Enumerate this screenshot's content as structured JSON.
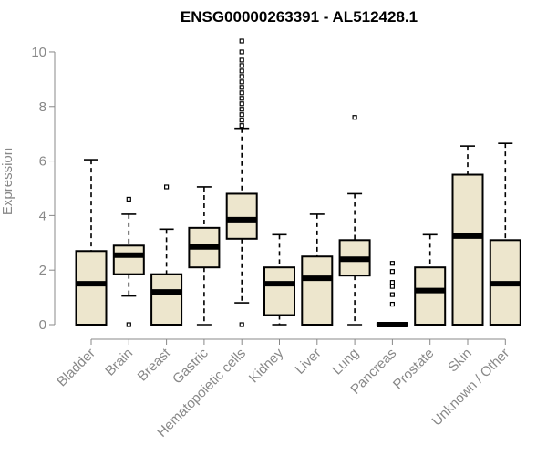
{
  "chart_data": {
    "type": "boxplot",
    "title": "ENSG00000263391 - AL512428.1",
    "xlabel": "",
    "ylabel": "Expression",
    "ylim": [
      0,
      10.4
    ],
    "yticks": [
      0,
      2,
      4,
      6,
      8,
      10
    ],
    "colors": {
      "box_fill": "#ede6cd",
      "box_stroke": "#000000",
      "axis": "#888888"
    },
    "categories": [
      "Bladder",
      "Brain",
      "Breast",
      "Gastric",
      "Hematopoietic cells",
      "Kidney",
      "Liver",
      "Lung",
      "Pancreas",
      "Prostate",
      "Skin",
      "Unknown / Other"
    ],
    "boxes": [
      {
        "min": 0,
        "q1": 0,
        "median": 1.5,
        "q3": 2.7,
        "max": 6.05,
        "outliers": []
      },
      {
        "min": 1.05,
        "q1": 1.85,
        "median": 2.55,
        "q3": 2.9,
        "max": 4.05,
        "outliers": [
          0,
          4.6
        ]
      },
      {
        "min": 0,
        "q1": 0,
        "median": 1.2,
        "q3": 1.85,
        "max": 3.5,
        "outliers": [
          5.05
        ]
      },
      {
        "min": 0,
        "q1": 2.1,
        "median": 2.85,
        "q3": 3.55,
        "max": 5.05,
        "outliers": []
      },
      {
        "min": 0.8,
        "q1": 3.15,
        "median": 3.85,
        "q3": 4.8,
        "max": 7.2,
        "outliers": [
          0,
          7.3,
          7.5,
          7.7,
          7.9,
          8.1,
          8.3,
          8.5,
          8.7,
          8.9,
          9.1,
          9.3,
          9.5,
          9.7,
          10.0,
          10.4
        ]
      },
      {
        "min": 0,
        "q1": 0.35,
        "median": 1.5,
        "q3": 2.1,
        "max": 3.3,
        "outliers": []
      },
      {
        "min": 0,
        "q1": 0,
        "median": 1.7,
        "q3": 2.5,
        "max": 4.05,
        "outliers": []
      },
      {
        "min": 0,
        "q1": 1.8,
        "median": 2.4,
        "q3": 3.1,
        "max": 4.8,
        "outliers": [
          7.6
        ]
      },
      {
        "min": 0,
        "q1": 0,
        "median": 0,
        "q3": 0.05,
        "max": 0.05,
        "outliers": [
          0.75,
          1.1,
          1.4,
          1.55,
          1.95,
          2.25
        ]
      },
      {
        "min": 0,
        "q1": 0,
        "median": 1.25,
        "q3": 2.1,
        "max": 3.3,
        "outliers": []
      },
      {
        "min": 0,
        "q1": 0,
        "median": 3.25,
        "q3": 5.5,
        "max": 6.55,
        "outliers": []
      },
      {
        "min": 0,
        "q1": 0,
        "median": 1.5,
        "q3": 3.1,
        "max": 6.65,
        "outliers": []
      }
    ]
  }
}
